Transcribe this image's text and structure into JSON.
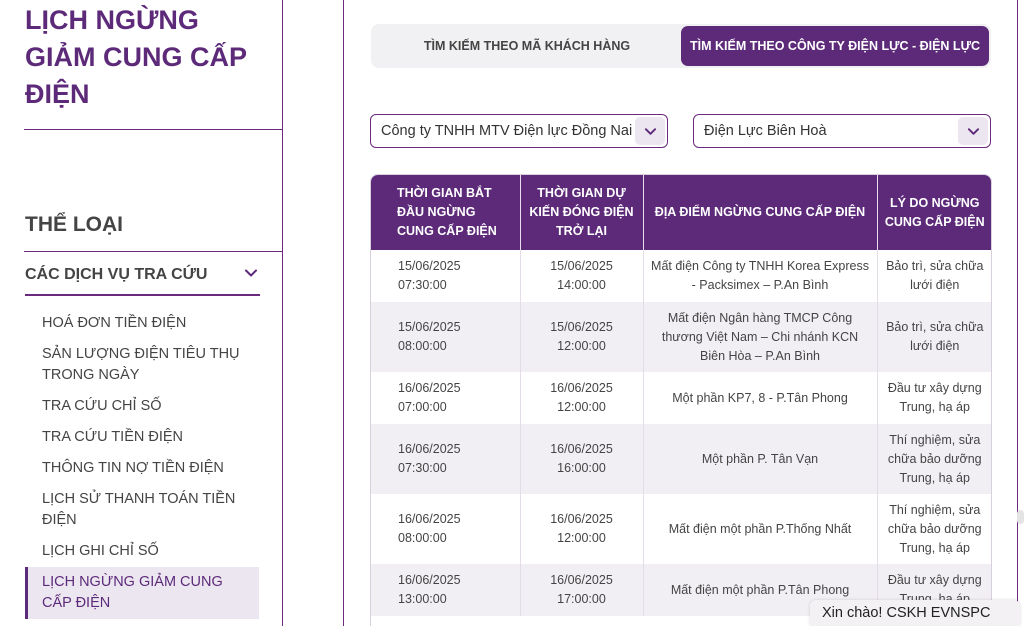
{
  "sidebar": {
    "page_title": "Lịch ngừng giảm cung cấp điện",
    "category_heading": "THỂ LOẠI",
    "accordion_label": "CÁC DỊCH VỤ TRA CỨU",
    "items": [
      "HOÁ ĐƠN TIỀN ĐIỆN",
      "SẢN LƯỢNG ĐIỆN TIÊU THỤ TRONG NGÀY",
      "TRA CỨU CHỈ SỐ",
      "TRA CỨU TIỀN ĐIỆN",
      "THÔNG TIN NỢ TIỀN ĐIỆN",
      "LỊCH SỬ THANH TOÁN TIỀN ĐIỆN",
      "LỊCH GHI CHỈ SỐ",
      "LỊCH NGỪNG GIẢM CUNG CẤP ĐIỆN"
    ],
    "active_index": 7
  },
  "tabs": {
    "by_customer": "TÌM KIẾM THEO MÃ KHÁCH HÀNG",
    "by_company": "TÌM KIẾM THEO CÔNG TY ĐIỆN LỰC - ĐIỆN LỰC"
  },
  "filters": {
    "company": "Công ty TNHH MTV Điện lực Đồng Nai",
    "branch": "Điện Lực Biên Hoà"
  },
  "table": {
    "headers": {
      "start": "Thời gian bắt đầu ngừng cung cấp điện",
      "end": "Thời gian dự kiến đóng điện trở lại",
      "location": "Địa điểm ngừng cung cấp điện",
      "reason": "Lý do ngừng cung cấp điện"
    },
    "rows": [
      {
        "start": "15/06/2025\n07:30:00",
        "end": "15/06/2025\n14:00:00",
        "location": "Mất điện Công ty TNHH Korea Express - Packsimex – P.An Bình",
        "reason": "Bảo trì, sửa chữa lưới điện"
      },
      {
        "start": "15/06/2025\n08:00:00",
        "end": "15/06/2025\n12:00:00",
        "location": "Mất điện Ngân hàng TMCP Công thương Việt Nam – Chi nhánh KCN Biên Hòa – P.An Bình",
        "reason": "Bảo trì, sửa chữa lưới điện"
      },
      {
        "start": "16/06/2025\n07:00:00",
        "end": "16/06/2025\n12:00:00",
        "location": "Một phần KP7, 8 - P.Tân Phong",
        "reason": "Đầu tư xây dựng Trung, hạ áp"
      },
      {
        "start": "16/06/2025\n07:30:00",
        "end": "16/06/2025\n16:00:00",
        "location": "Một phần P. Tân Vạn",
        "reason": "Thí nghiệm, sửa chữa bảo dưỡng Trung, hạ áp"
      },
      {
        "start": "16/06/2025\n08:00:00",
        "end": "16/06/2025\n12:00:00",
        "location": "Mất điện một phần P.Thống Nhất",
        "reason": "Thí nghiệm, sửa chữa bảo dưỡng Trung, hạ áp"
      },
      {
        "start": "16/06/2025\n13:00:00",
        "end": "16/06/2025\n17:00:00",
        "location": "Mất điện một phần P.Tân Phong",
        "reason": "Đầu tư xây dựng Trung, hạ áp"
      }
    ]
  },
  "chat": {
    "label": "Xin chào! CSKH EVNSPC"
  },
  "colors": {
    "brand": "#5d2a7a",
    "row_alt": "#f2eff4"
  },
  "icons": {
    "chevron": "chevron-down-icon"
  }
}
